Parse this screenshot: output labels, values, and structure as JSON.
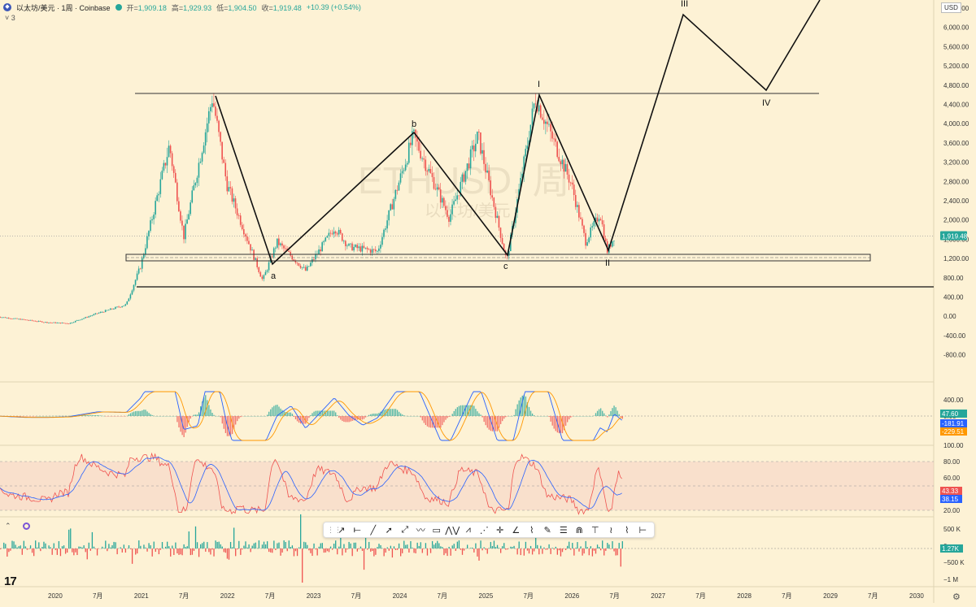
{
  "header": {
    "symbol": "以太坊/美元 · 1周 · Coinbase",
    "open_label": "开=",
    "open": "1,909.18",
    "high_label": "高=",
    "high": "1,929.93",
    "low_label": "低=",
    "low": "1,904.50",
    "close_label": "收=",
    "close": "1,919.48",
    "change": "+10.39 (+0.54%)",
    "collapse_label": "˅ 3",
    "currency": "USD"
  },
  "watermark": {
    "symbol": "ETHUSD, 周",
    "name": "以太坊/美元"
  },
  "toolbar": {
    "tools": [
      "trend-line",
      "horizontal-ray",
      "line",
      "arrow",
      "ray",
      "path",
      "rectangle",
      "xabcd",
      "abcd",
      "three-drives",
      "crosshair",
      "angle",
      "fib",
      "brush",
      "parallel-channel",
      "head-shoulders",
      "anchored-text",
      "elliott-wave",
      "polyline",
      "date-range"
    ]
  },
  "colors": {
    "up": "#26a69a",
    "down": "#ef5350",
    "line": "#111111",
    "macd": "#2962ff",
    "signal": "#ff9800",
    "rsi": "#7e57c2",
    "rsi_band": "#f3c9c0"
  },
  "chart_data": [
    {
      "id": "price",
      "type": "candlestick",
      "ylabel": "",
      "scale": "log",
      "y_ticks": [
        "6,400.00",
        "6,000.00",
        "5,600.00",
        "5,200.00",
        "4,800.00",
        "4,400.00",
        "4,000.00",
        "3,600.00",
        "3,200.00",
        "2,800.00",
        "2,400.00",
        "2,000.00",
        "1,600.00",
        "1,200.00",
        "800.00",
        "400.00",
        "0.00",
        "-400.00",
        "-800.00"
      ],
      "x_ticks": [
        "2020",
        "7月",
        "2021",
        "7月",
        "2022",
        "7月",
        "2023",
        "7月",
        "2024",
        "7月",
        "2025",
        "7月",
        "2026",
        "7月",
        "2027",
        "7月",
        "2028",
        "7月",
        "2029",
        "7月",
        "2030"
      ],
      "last_price_label": "1,919.48",
      "series_points": [
        [
          "2019-05",
          250
        ],
        [
          "2019-12",
          130
        ],
        [
          "2020-03",
          110
        ],
        [
          "2020-07",
          320
        ],
        [
          "2020-11",
          500
        ],
        [
          "2021-01",
          1300
        ],
        [
          "2021-05",
          3800
        ],
        [
          "2021-07",
          1900
        ],
        [
          "2021-11",
          4800
        ],
        [
          "2022-01",
          3000
        ],
        [
          "2022-06",
          1000
        ],
        [
          "2022-08",
          1800
        ],
        [
          "2022-12",
          1200
        ],
        [
          "2023-04",
          2100
        ],
        [
          "2023-06",
          1700
        ],
        [
          "2023-10",
          1600
        ],
        [
          "2024-03",
          4000
        ],
        [
          "2024-08",
          2300
        ],
        [
          "2024-12",
          4000
        ],
        [
          "2025-04",
          1400
        ],
        [
          "2025-08",
          4800
        ],
        [
          "2026-01",
          3000
        ],
        [
          "2026-03",
          1800
        ],
        [
          "2026-05",
          2400
        ],
        [
          "2026-06",
          1600
        ],
        [
          "2026-07",
          1919.48
        ]
      ],
      "elliott_wave": {
        "labels": [
          "a",
          "b",
          "c",
          "I",
          "II",
          "III",
          "IV"
        ],
        "points": [
          [
            "2021-11",
            4800
          ],
          [
            "2022-06",
            1300
          ],
          [
            "2024-03",
            4000
          ],
          [
            "2025-04",
            1400
          ],
          [
            "2025-08",
            4800
          ],
          [
            "2026-06",
            1600
          ],
          [
            "2027-06",
            6500
          ],
          [
            "2028-05",
            4900
          ],
          [
            "2028-12",
            7400
          ]
        ]
      },
      "resistance_line": 4850,
      "support_line": 900,
      "support_zone": [
        1380,
        1520
      ]
    },
    {
      "id": "macd",
      "type": "line",
      "y_ticks": [
        "400.00",
        "0.00"
      ],
      "values_labels": [
        "47.60",
        "-181.91",
        "-229.51"
      ]
    },
    {
      "id": "rsi",
      "type": "line",
      "y_ticks": [
        "100.00",
        "80.00",
        "60.00",
        "40.00",
        "20.00"
      ],
      "values_labels": [
        "43.33",
        "38.15"
      ]
    },
    {
      "id": "volume",
      "type": "bar",
      "y_ticks": [
        "500 K",
        "0",
        "−500 K",
        "−1 M"
      ],
      "values_labels": [
        "1.27K"
      ]
    }
  ]
}
